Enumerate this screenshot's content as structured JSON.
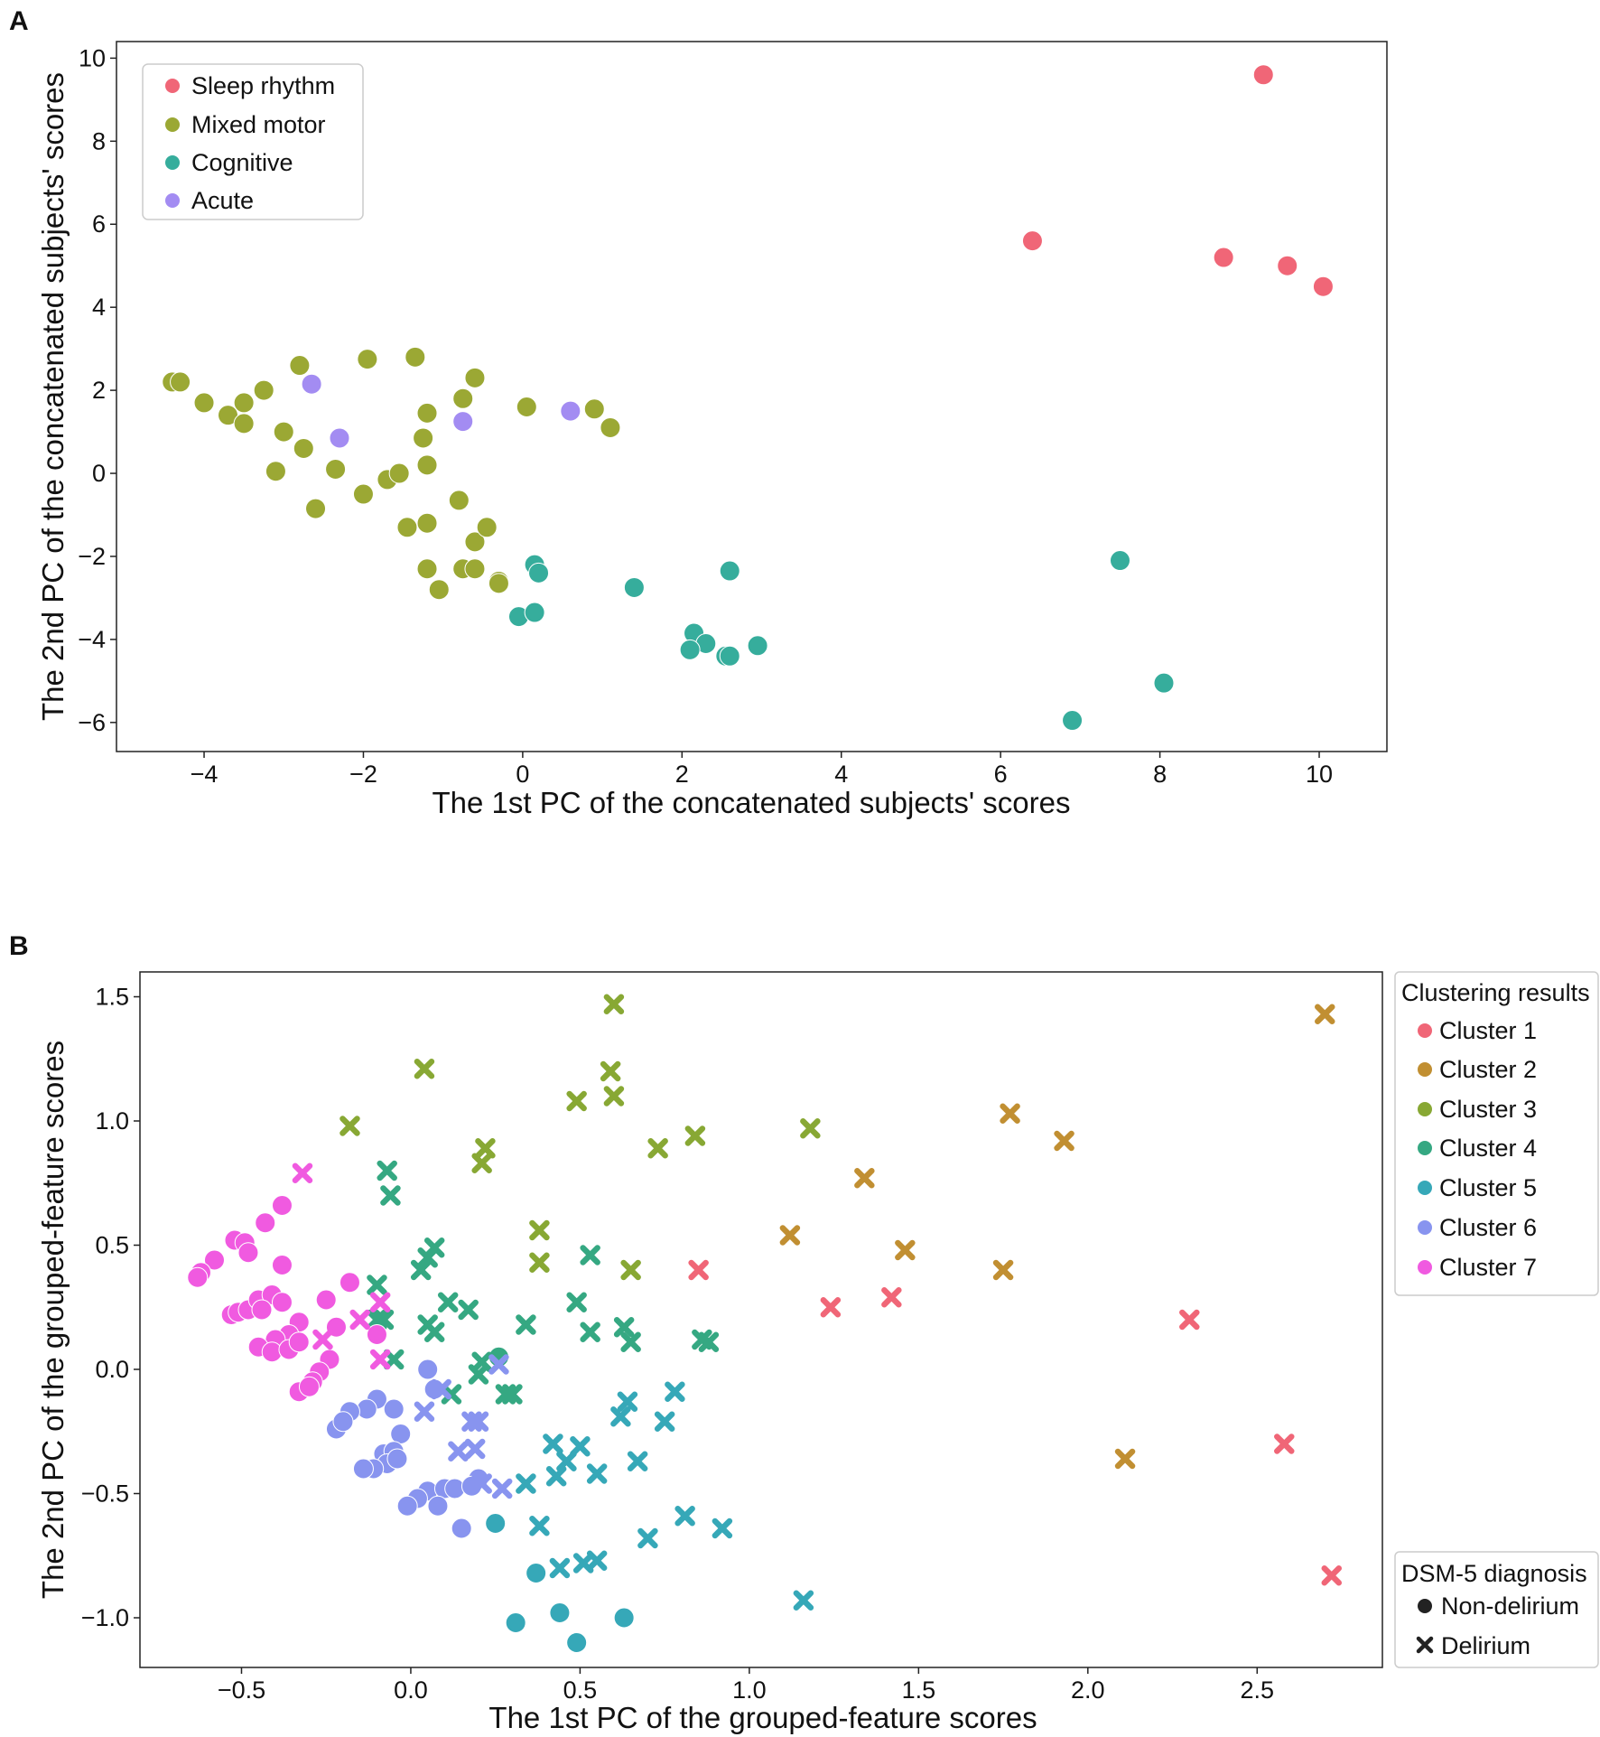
{
  "figure": {
    "panel_a_label": "A",
    "panel_b_label": "B"
  },
  "chart_data": [
    {
      "type": "scatter",
      "panel": "A",
      "title": "",
      "xlabel": "The 1st PC of the concatenated subjects' scores",
      "ylabel": "The 2nd PC of the concatenated subjects' scores",
      "xlim": [
        -5.1,
        10.85
      ],
      "ylim": [
        -6.7,
        10.4
      ],
      "xticks": [
        -4,
        -2,
        0,
        2,
        4,
        6,
        8,
        10
      ],
      "xtick_labels": [
        "−4",
        "−2",
        "0",
        "2",
        "4",
        "6",
        "8",
        "10"
      ],
      "yticks": [
        -6,
        -4,
        -2,
        0,
        2,
        4,
        6,
        8,
        10
      ],
      "ytick_labels": [
        "−6",
        "−4",
        "−2",
        "0",
        "2",
        "4",
        "6",
        "8",
        "10"
      ],
      "legend_position": "top-left",
      "series": [
        {
          "name": "Sleep rhythm",
          "color": "#f06677",
          "points": [
            [
              9.3,
              9.6
            ],
            [
              6.4,
              5.6
            ],
            [
              8.8,
              5.2
            ],
            [
              9.6,
              5.0
            ],
            [
              10.05,
              4.5
            ]
          ]
        },
        {
          "name": "Mixed motor",
          "color": "#9ba834",
          "points": [
            [
              -4.4,
              2.2
            ],
            [
              -4.3,
              2.2
            ],
            [
              -4.0,
              1.7
            ],
            [
              -3.7,
              1.4
            ],
            [
              -3.5,
              1.7
            ],
            [
              -3.5,
              1.2
            ],
            [
              -3.25,
              2.0
            ],
            [
              -3.0,
              1.0
            ],
            [
              -3.1,
              0.05
            ],
            [
              -2.8,
              2.6
            ],
            [
              -2.75,
              0.6
            ],
            [
              -2.35,
              0.1
            ],
            [
              -2.6,
              -0.85
            ],
            [
              -1.95,
              2.75
            ],
            [
              -2.0,
              -0.5
            ],
            [
              -1.7,
              -0.15
            ],
            [
              -1.55,
              0.0
            ],
            [
              -1.35,
              2.8
            ],
            [
              -1.45,
              -1.3
            ],
            [
              -1.25,
              0.85
            ],
            [
              -1.2,
              1.45
            ],
            [
              -1.2,
              0.2
            ],
            [
              -1.2,
              -1.2
            ],
            [
              -1.2,
              -2.3
            ],
            [
              -1.05,
              -2.8
            ],
            [
              -0.75,
              1.8
            ],
            [
              -0.6,
              2.3
            ],
            [
              -0.8,
              -0.65
            ],
            [
              -0.75,
              -2.3
            ],
            [
              -0.6,
              -1.65
            ],
            [
              -0.6,
              -2.3
            ],
            [
              -0.45,
              -1.3
            ],
            [
              -0.3,
              -2.6
            ],
            [
              -0.3,
              -2.65
            ],
            [
              0.05,
              1.6
            ],
            [
              0.9,
              1.55
            ],
            [
              1.1,
              1.1
            ]
          ]
        },
        {
          "name": "Cognitive",
          "color": "#36ad9c",
          "points": [
            [
              -0.05,
              -3.45
            ],
            [
              0.15,
              -3.35
            ],
            [
              0.15,
              -2.2
            ],
            [
              0.2,
              -2.4
            ],
            [
              1.4,
              -2.75
            ],
            [
              2.6,
              -2.35
            ],
            [
              2.15,
              -3.85
            ],
            [
              2.3,
              -4.1
            ],
            [
              2.1,
              -4.25
            ],
            [
              2.55,
              -4.4
            ],
            [
              2.6,
              -4.4
            ],
            [
              2.95,
              -4.15
            ],
            [
              7.5,
              -2.1
            ],
            [
              8.05,
              -5.05
            ],
            [
              6.9,
              -5.95
            ]
          ]
        },
        {
          "name": "Acute",
          "color": "#a38cf2",
          "points": [
            [
              -2.65,
              2.15
            ],
            [
              -2.3,
              0.85
            ],
            [
              -0.75,
              1.25
            ],
            [
              0.6,
              1.5
            ]
          ]
        }
      ]
    },
    {
      "type": "scatter",
      "panel": "B",
      "title": "",
      "xlabel": "The 1st PC of the grouped-feature scores",
      "ylabel": "The 2nd PC of the grouped-feature scores",
      "xlim": [
        -0.8,
        2.87
      ],
      "ylim": [
        -1.2,
        1.6
      ],
      "xticks": [
        -0.5,
        0.0,
        0.5,
        1.0,
        1.5,
        2.0,
        2.5
      ],
      "xtick_labels": [
        "−0.5",
        "0.0",
        "0.5",
        "1.0",
        "1.5",
        "2.0",
        "2.5"
      ],
      "yticks": [
        -1.0,
        -0.5,
        0.0,
        0.5,
        1.0,
        1.5
      ],
      "ytick_labels": [
        "−1.0",
        "−0.5",
        "0.0",
        "0.5",
        "1.0",
        "1.5"
      ],
      "legend_position": "outside-right",
      "legend_title": "Clustering results",
      "marker_legend_title": "DSM-5 diagnosis",
      "marker_legend": [
        {
          "label": "Non-delirium",
          "marker": "circle"
        },
        {
          "label": "Delirium",
          "marker": "x"
        }
      ],
      "series": [
        {
          "name": "Cluster 1",
          "color": "#f06677",
          "delirium": [
            [
              0.85,
              0.4
            ],
            [
              1.24,
              0.25
            ],
            [
              1.42,
              0.29
            ],
            [
              2.3,
              0.2
            ],
            [
              2.58,
              -0.3
            ],
            [
              2.72,
              -0.83
            ]
          ],
          "non_delirium": []
        },
        {
          "name": "Cluster 2",
          "color": "#c18f32",
          "delirium": [
            [
              2.7,
              1.43
            ],
            [
              1.77,
              1.03
            ],
            [
              1.93,
              0.92
            ],
            [
              1.34,
              0.77
            ],
            [
              1.12,
              0.54
            ],
            [
              1.46,
              0.48
            ],
            [
              1.75,
              0.4
            ],
            [
              2.11,
              -0.36
            ]
          ],
          "non_delirium": []
        },
        {
          "name": "Cluster 3",
          "color": "#88a834",
          "delirium": [
            [
              0.6,
              1.47
            ],
            [
              0.04,
              1.21
            ],
            [
              0.59,
              1.2
            ],
            [
              0.6,
              1.1
            ],
            [
              0.49,
              1.08
            ],
            [
              -0.18,
              0.98
            ],
            [
              0.22,
              0.89
            ],
            [
              0.21,
              0.83
            ],
            [
              0.73,
              0.89
            ],
            [
              0.84,
              0.94
            ],
            [
              1.18,
              0.97
            ],
            [
              0.38,
              0.56
            ],
            [
              0.38,
              0.43
            ],
            [
              0.65,
              0.4
            ]
          ],
          "non_delirium": []
        },
        {
          "name": "Cluster 4",
          "color": "#35a882",
          "delirium": [
            [
              -0.07,
              0.8
            ],
            [
              -0.06,
              0.7
            ],
            [
              0.07,
              0.49
            ],
            [
              0.05,
              0.45
            ],
            [
              0.03,
              0.4
            ],
            [
              -0.1,
              0.34
            ],
            [
              -0.08,
              0.2
            ],
            [
              0.11,
              0.27
            ],
            [
              0.17,
              0.24
            ],
            [
              0.05,
              0.18
            ],
            [
              0.07,
              0.15
            ],
            [
              -0.1,
              0.2
            ],
            [
              -0.05,
              0.04
            ],
            [
              0.2,
              -0.02
            ],
            [
              0.21,
              0.03
            ],
            [
              0.28,
              -0.1
            ],
            [
              0.3,
              -0.1
            ],
            [
              0.12,
              -0.1
            ],
            [
              0.34,
              0.18
            ],
            [
              0.53,
              0.46
            ],
            [
              0.49,
              0.27
            ],
            [
              0.53,
              0.15
            ],
            [
              0.63,
              0.17
            ],
            [
              0.65,
              0.11
            ],
            [
              0.86,
              0.12
            ],
            [
              0.88,
              0.11
            ]
          ],
          "non_delirium": [
            [
              0.26,
              0.05
            ]
          ]
        },
        {
          "name": "Cluster 5",
          "color": "#36a8b8",
          "delirium": [
            [
              0.78,
              -0.09
            ],
            [
              0.64,
              -0.13
            ],
            [
              0.62,
              -0.19
            ],
            [
              0.75,
              -0.21
            ],
            [
              0.67,
              -0.37
            ],
            [
              0.42,
              -0.3
            ],
            [
              0.46,
              -0.37
            ],
            [
              0.5,
              -0.31
            ],
            [
              0.55,
              -0.42
            ],
            [
              0.43,
              -0.43
            ],
            [
              0.34,
              -0.46
            ],
            [
              0.38,
              -0.63
            ],
            [
              0.81,
              -0.59
            ],
            [
              0.92,
              -0.64
            ],
            [
              0.7,
              -0.68
            ],
            [
              0.44,
              -0.8
            ],
            [
              0.51,
              -0.78
            ],
            [
              0.55,
              -0.77
            ],
            [
              1.16,
              -0.93
            ]
          ],
          "non_delirium": [
            [
              0.25,
              -0.62
            ],
            [
              0.37,
              -0.82
            ],
            [
              0.44,
              -0.98
            ],
            [
              0.49,
              -1.1
            ],
            [
              0.63,
              -1.0
            ],
            [
              0.31,
              -1.02
            ]
          ]
        },
        {
          "name": "Cluster 6",
          "color": "#8894ef",
          "delirium": [
            [
              0.09,
              -0.08
            ],
            [
              0.04,
              -0.17
            ],
            [
              0.18,
              -0.21
            ],
            [
              0.2,
              -0.21
            ],
            [
              0.14,
              -0.33
            ],
            [
              0.19,
              -0.32
            ],
            [
              0.21,
              -0.46
            ],
            [
              0.27,
              -0.48
            ],
            [
              0.26,
              0.02
            ]
          ],
          "non_delirium": [
            [
              0.05,
              0.0
            ],
            [
              0.07,
              -0.08
            ],
            [
              -0.1,
              -0.12
            ],
            [
              -0.05,
              -0.16
            ],
            [
              -0.13,
              -0.16
            ],
            [
              -0.18,
              -0.17
            ],
            [
              -0.22,
              -0.24
            ],
            [
              -0.2,
              -0.21
            ],
            [
              -0.03,
              -0.26
            ],
            [
              -0.08,
              -0.34
            ],
            [
              -0.05,
              -0.33
            ],
            [
              -0.07,
              -0.38
            ],
            [
              -0.11,
              -0.4
            ],
            [
              -0.14,
              -0.4
            ],
            [
              -0.04,
              -0.36
            ],
            [
              0.05,
              -0.49
            ],
            [
              0.1,
              -0.48
            ],
            [
              0.13,
              -0.48
            ],
            [
              0.2,
              -0.44
            ],
            [
              0.02,
              -0.52
            ],
            [
              -0.01,
              -0.55
            ],
            [
              0.08,
              -0.55
            ],
            [
              0.15,
              -0.64
            ],
            [
              0.18,
              -0.47
            ]
          ]
        },
        {
          "name": "Cluster 7",
          "color": "#f05ae0",
          "delirium": [
            [
              -0.32,
              0.79
            ],
            [
              -0.26,
              0.12
            ],
            [
              -0.15,
              0.2
            ],
            [
              -0.09,
              0.27
            ],
            [
              -0.09,
              0.04
            ]
          ],
          "non_delirium": [
            [
              -0.38,
              0.66
            ],
            [
              -0.43,
              0.59
            ],
            [
              -0.52,
              0.52
            ],
            [
              -0.49,
              0.51
            ],
            [
              -0.48,
              0.47
            ],
            [
              -0.58,
              0.44
            ],
            [
              -0.62,
              0.39
            ],
            [
              -0.63,
              0.37
            ],
            [
              -0.38,
              0.42
            ],
            [
              -0.18,
              0.35
            ],
            [
              -0.53,
              0.22
            ],
            [
              -0.51,
              0.23
            ],
            [
              -0.48,
              0.24
            ],
            [
              -0.45,
              0.28
            ],
            [
              -0.41,
              0.3
            ],
            [
              -0.38,
              0.27
            ],
            [
              -0.44,
              0.24
            ],
            [
              -0.25,
              0.28
            ],
            [
              -0.33,
              0.19
            ],
            [
              -0.36,
              0.14
            ],
            [
              -0.4,
              0.12
            ],
            [
              -0.45,
              0.09
            ],
            [
              -0.41,
              0.07
            ],
            [
              -0.36,
              0.08
            ],
            [
              -0.33,
              0.11
            ],
            [
              -0.22,
              0.17
            ],
            [
              -0.1,
              0.14
            ],
            [
              -0.24,
              0.04
            ],
            [
              -0.27,
              -0.01
            ],
            [
              -0.29,
              -0.05
            ],
            [
              -0.33,
              -0.09
            ],
            [
              -0.3,
              -0.07
            ]
          ]
        }
      ]
    }
  ]
}
